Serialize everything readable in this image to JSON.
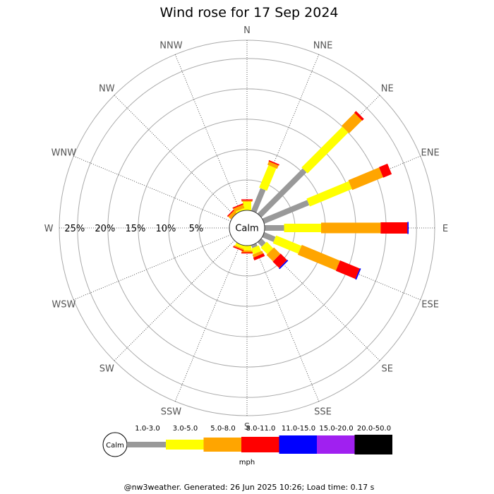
{
  "chart_data": {
    "type": "polar-bar",
    "title": "Wind rose for 17 Sep 2024",
    "directions": [
      "N",
      "NNE",
      "NE",
      "ENE",
      "E",
      "ESE",
      "SE",
      "SSE",
      "S",
      "SSW",
      "SW",
      "WSW",
      "W",
      "WNW",
      "NW",
      "NNW"
    ],
    "ring_labels": [
      "5%",
      "10%",
      "15%",
      "20%",
      "25%"
    ],
    "ring_max_percent": 28,
    "calm_label": "Calm",
    "unit": "mph",
    "speed_bins": [
      {
        "label": "",
        "color": "#999999"
      },
      {
        "label": "1.0-3.0",
        "color": "#ffff00"
      },
      {
        "label": "3.0-5.0",
        "color": "#ffa500"
      },
      {
        "label": "5.0-8.0",
        "color": "#ff0000"
      },
      {
        "label": "8.0-11.0",
        "color": "#0000ff"
      },
      {
        "label": "11.0-15.0",
        "color": "#a020f0"
      },
      {
        "label": "15.0-20.0",
        "color": "#000000"
      },
      {
        "label": "20.0-50.0",
        "color": ""
      }
    ],
    "cumulative": [
      {
        "dir": "N",
        "values": [
          0.0,
          1.4,
          1.6,
          1.8,
          1.8
        ]
      },
      {
        "dir": "NNE",
        "values": [
          4.0,
          8.0,
          8.6,
          8.8,
          8.8
        ]
      },
      {
        "dir": "NE",
        "values": [
          10.5,
          20.0,
          23.0,
          23.4,
          23.4
        ]
      },
      {
        "dir": "ENE",
        "values": [
          8.0,
          15.5,
          21.0,
          22.5,
          22.5
        ]
      },
      {
        "dir": "E",
        "values": [
          3.2,
          9.3,
          19.1,
          23.5,
          23.7
        ]
      },
      {
        "dir": "ESE",
        "values": [
          2.0,
          6.5,
          13.3,
          16.8,
          17.0
        ]
      },
      {
        "dir": "SE",
        "values": [
          1.0,
          2.5,
          4.0,
          5.5,
          5.7
        ]
      },
      {
        "dir": "SSE",
        "values": [
          0.5,
          1.5,
          2.0,
          2.5,
          2.5
        ]
      },
      {
        "dir": "S",
        "values": [
          0.0,
          0.8,
          1.1,
          1.3,
          1.3
        ]
      },
      {
        "dir": "SSW",
        "values": [
          0.0,
          0.5,
          0.7,
          0.9,
          0.9
        ]
      },
      {
        "dir": "SW",
        "values": [
          0.0,
          0.0,
          0.0,
          0.0,
          0.0
        ]
      },
      {
        "dir": "WSW",
        "values": [
          0.0,
          0.0,
          0.0,
          0.0,
          0.0
        ]
      },
      {
        "dir": "W",
        "values": [
          0.0,
          0.0,
          0.0,
          0.0,
          0.0
        ]
      },
      {
        "dir": "WNW",
        "values": [
          0.0,
          0.0,
          0.0,
          0.0,
          0.0
        ]
      },
      {
        "dir": "NW",
        "values": [
          0.0,
          0.0,
          0.6,
          0.8,
          0.8
        ]
      },
      {
        "dir": "NNW",
        "values": [
          0.0,
          0.3,
          0.9,
          1.1,
          1.1
        ]
      }
    ]
  },
  "footer": "@nw3weather. Generated: 26 Jun 2025 10:26; Load time: 0.17 s"
}
